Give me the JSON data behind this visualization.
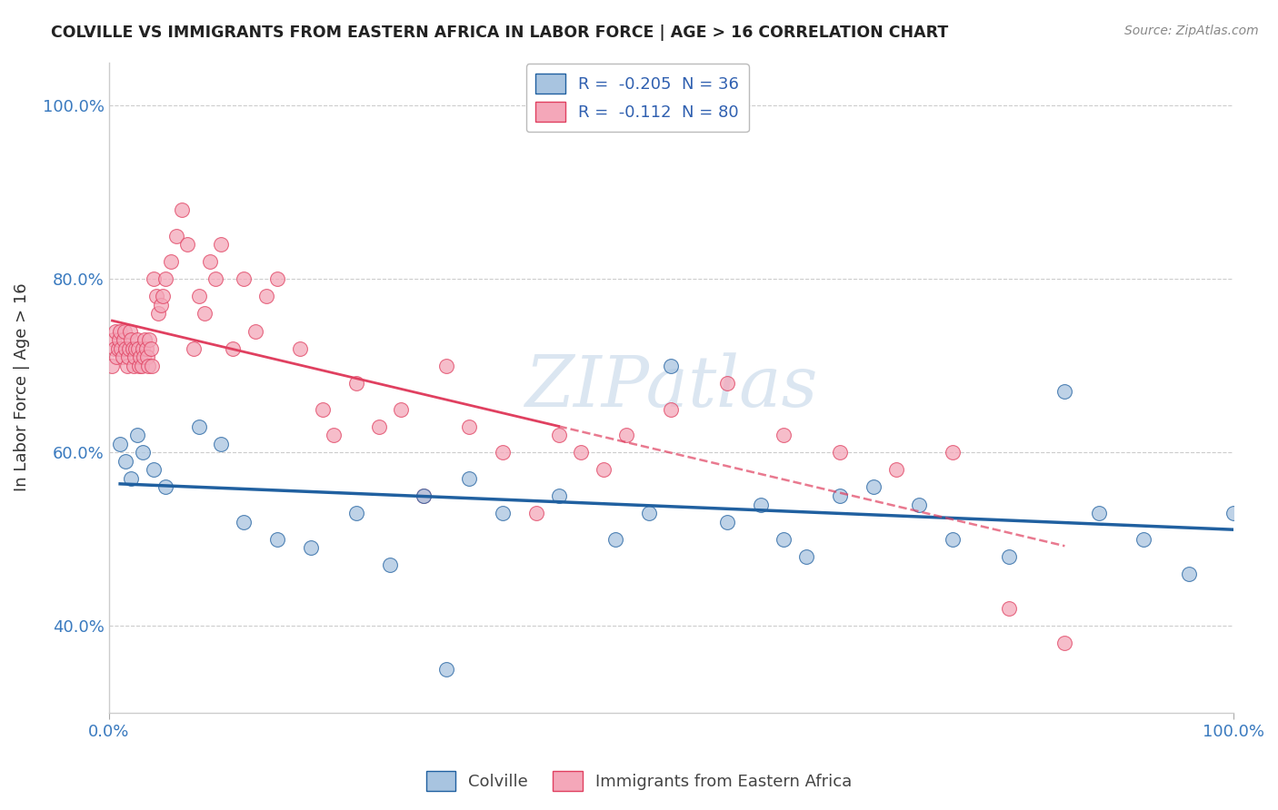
{
  "title": "COLVILLE VS IMMIGRANTS FROM EASTERN AFRICA IN LABOR FORCE | AGE > 16 CORRELATION CHART",
  "source": "Source: ZipAtlas.com",
  "ylabel": "In Labor Force | Age > 16",
  "xlim": [
    0.0,
    1.0
  ],
  "ylim": [
    0.3,
    1.05
  ],
  "x_tick_labels": [
    "0.0%",
    "100.0%"
  ],
  "y_tick_labels": [
    "40.0%",
    "60.0%",
    "80.0%",
    "100.0%"
  ],
  "y_tick_values": [
    0.4,
    0.6,
    0.8,
    1.0
  ],
  "legend_labels": [
    "Colville",
    "Immigrants from Eastern Africa"
  ],
  "colville_color": "#a8c4e0",
  "eastern_africa_color": "#f4a7b9",
  "colville_line_color": "#2060a0",
  "eastern_africa_line_color": "#e04060",
  "colville_R": "-0.205",
  "colville_N": "36",
  "eastern_africa_R": "-0.112",
  "eastern_africa_N": "80",
  "watermark": "ZIPatlas",
  "background_color": "#ffffff",
  "colville_scatter_x": [
    0.01,
    0.015,
    0.02,
    0.025,
    0.03,
    0.04,
    0.05,
    0.08,
    0.1,
    0.12,
    0.15,
    0.18,
    0.22,
    0.25,
    0.28,
    0.3,
    0.32,
    0.35,
    0.4,
    0.45,
    0.48,
    0.5,
    0.55,
    0.58,
    0.6,
    0.62,
    0.65,
    0.68,
    0.72,
    0.75,
    0.8,
    0.85,
    0.88,
    0.92,
    0.96,
    1.0
  ],
  "colville_scatter_y": [
    0.61,
    0.59,
    0.57,
    0.62,
    0.6,
    0.58,
    0.56,
    0.63,
    0.61,
    0.52,
    0.5,
    0.49,
    0.53,
    0.47,
    0.55,
    0.35,
    0.57,
    0.53,
    0.55,
    0.5,
    0.53,
    0.7,
    0.52,
    0.54,
    0.5,
    0.48,
    0.55,
    0.56,
    0.54,
    0.5,
    0.48,
    0.67,
    0.53,
    0.5,
    0.46,
    0.53
  ],
  "eastern_africa_scatter_x": [
    0.003,
    0.004,
    0.005,
    0.006,
    0.007,
    0.008,
    0.009,
    0.01,
    0.011,
    0.012,
    0.013,
    0.014,
    0.015,
    0.016,
    0.017,
    0.018,
    0.019,
    0.02,
    0.021,
    0.022,
    0.023,
    0.024,
    0.025,
    0.026,
    0.027,
    0.028,
    0.029,
    0.03,
    0.031,
    0.032,
    0.033,
    0.034,
    0.035,
    0.036,
    0.037,
    0.038,
    0.04,
    0.042,
    0.044,
    0.046,
    0.048,
    0.05,
    0.055,
    0.06,
    0.065,
    0.07,
    0.075,
    0.08,
    0.085,
    0.09,
    0.095,
    0.1,
    0.11,
    0.12,
    0.13,
    0.14,
    0.15,
    0.17,
    0.19,
    0.2,
    0.22,
    0.24,
    0.26,
    0.28,
    0.3,
    0.32,
    0.35,
    0.38,
    0.4,
    0.42,
    0.44,
    0.46,
    0.5,
    0.55,
    0.6,
    0.65,
    0.7,
    0.75,
    0.8,
    0.85
  ],
  "eastern_africa_scatter_y": [
    0.7,
    0.73,
    0.72,
    0.74,
    0.71,
    0.72,
    0.73,
    0.74,
    0.72,
    0.71,
    0.73,
    0.74,
    0.72,
    0.7,
    0.71,
    0.72,
    0.74,
    0.73,
    0.72,
    0.7,
    0.71,
    0.72,
    0.73,
    0.72,
    0.7,
    0.71,
    0.7,
    0.72,
    0.71,
    0.73,
    0.72,
    0.71,
    0.7,
    0.73,
    0.72,
    0.7,
    0.8,
    0.78,
    0.76,
    0.77,
    0.78,
    0.8,
    0.82,
    0.85,
    0.88,
    0.84,
    0.72,
    0.78,
    0.76,
    0.82,
    0.8,
    0.84,
    0.72,
    0.8,
    0.74,
    0.78,
    0.8,
    0.72,
    0.65,
    0.62,
    0.68,
    0.63,
    0.65,
    0.55,
    0.7,
    0.63,
    0.6,
    0.53,
    0.62,
    0.6,
    0.58,
    0.62,
    0.65,
    0.68,
    0.62,
    0.6,
    0.58,
    0.6,
    0.42,
    0.38
  ]
}
